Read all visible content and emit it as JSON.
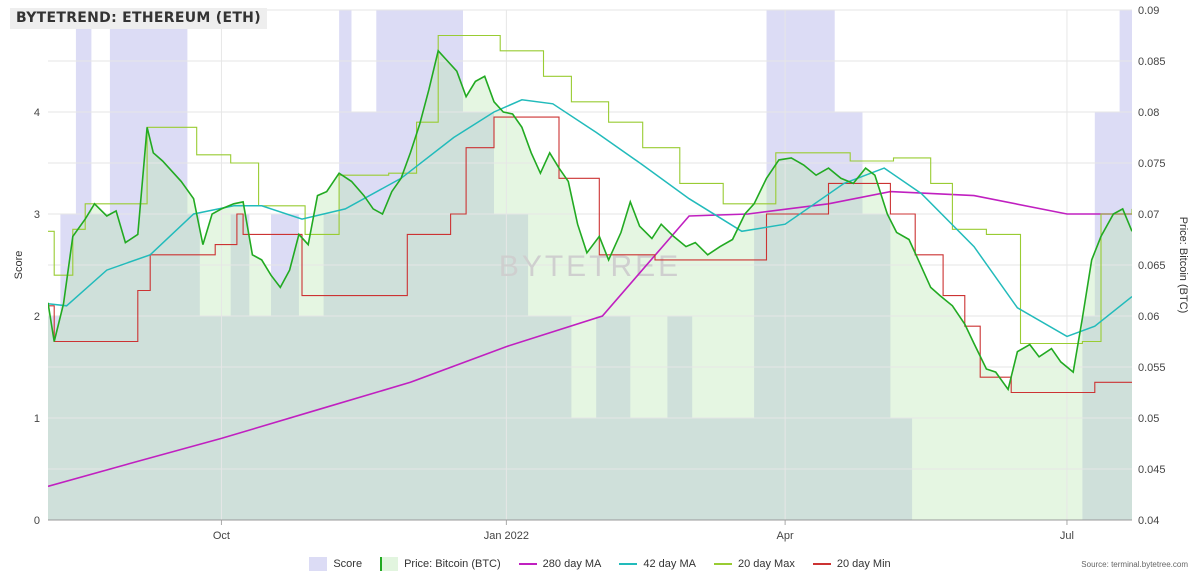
{
  "title": "BYTETREND: ETHEREUM (ETH)",
  "watermark": "BYTETREE",
  "source": "Source: terminal.bytetree.com",
  "colors": {
    "score": "#dcdcf5",
    "score_stroke": "#c8c8f0",
    "price": "#22aa22",
    "price_fill": "#e2f5df",
    "ma280": "#c020c0",
    "ma42": "#22bbbb",
    "max20": "#99cc33",
    "min20": "#cc3333",
    "overlap": "#cfe0da"
  },
  "chart_data": {
    "type": "line",
    "title": "BYTETREND: ETHEREUM (ETH)",
    "x_range": [
      "2021-08-06",
      "2022-07-22"
    ],
    "x_ticks": [
      {
        "date": "2021-10-01",
        "label": "Oct"
      },
      {
        "date": "2022-01-01",
        "label": "Jan 2022"
      },
      {
        "date": "2022-04-01",
        "label": "Apr"
      },
      {
        "date": "2022-07-01",
        "label": "Jul"
      }
    ],
    "y_left": {
      "label": "Score",
      "range": [
        0,
        5
      ],
      "ticks": [
        "0",
        "1",
        "2",
        "3",
        "4"
      ]
    },
    "y_right": {
      "label": "Price: Bitcoin (BTC)",
      "range": [
        0.04,
        0.09
      ],
      "ticks": [
        "0.04",
        "0.045",
        "0.05",
        "0.055",
        "0.06",
        "0.065",
        "0.07",
        "0.075",
        "0.08",
        "0.085",
        "0.09"
      ]
    },
    "legend": [
      {
        "name": "Score",
        "kind": "area"
      },
      {
        "name": "Price: Bitcoin (BTC)",
        "kind": "area-line"
      },
      {
        "name": "280 day MA",
        "kind": "line"
      },
      {
        "name": "42 day MA",
        "kind": "line"
      },
      {
        "name": "20 day Max",
        "kind": "line"
      },
      {
        "name": "20 day Min",
        "kind": "line"
      }
    ],
    "score": [
      [
        "2021-08-06",
        2
      ],
      [
        "2021-08-10",
        3
      ],
      [
        "2021-08-15",
        5
      ],
      [
        "2021-08-20",
        3
      ],
      [
        "2021-08-26",
        5
      ],
      [
        "2021-09-20",
        3
      ],
      [
        "2021-09-24",
        2
      ],
      [
        "2021-10-04",
        3
      ],
      [
        "2021-10-10",
        2
      ],
      [
        "2021-10-17",
        3
      ],
      [
        "2021-10-26",
        2
      ],
      [
        "2021-11-03",
        3
      ],
      [
        "2021-11-08",
        5
      ],
      [
        "2021-11-12",
        4
      ],
      [
        "2021-11-20",
        5
      ],
      [
        "2021-12-18",
        4
      ],
      [
        "2021-12-28",
        3
      ],
      [
        "2022-01-08",
        2
      ],
      [
        "2022-01-22",
        1
      ],
      [
        "2022-01-30",
        2
      ],
      [
        "2022-02-10",
        1
      ],
      [
        "2022-02-22",
        2
      ],
      [
        "2022-03-02",
        1
      ],
      [
        "2022-03-14",
        1
      ],
      [
        "2022-03-22",
        3
      ],
      [
        "2022-03-26",
        5
      ],
      [
        "2022-04-17",
        4
      ],
      [
        "2022-04-26",
        3
      ],
      [
        "2022-05-05",
        1
      ],
      [
        "2022-05-12",
        0
      ],
      [
        "2022-07-06",
        2
      ],
      [
        "2022-07-10",
        4
      ],
      [
        "2022-07-18",
        5
      ],
      [
        "2022-07-22",
        5
      ]
    ],
    "price": [
      [
        "2021-08-06",
        0.0613
      ],
      [
        "2021-08-08",
        0.0575
      ],
      [
        "2021-08-11",
        0.0612
      ],
      [
        "2021-08-14",
        0.0678
      ],
      [
        "2021-08-18",
        0.0695
      ],
      [
        "2021-08-21",
        0.071
      ],
      [
        "2021-08-25",
        0.0698
      ],
      [
        "2021-08-28",
        0.0703
      ],
      [
        "2021-08-31",
        0.0672
      ],
      [
        "2021-09-04",
        0.068
      ],
      [
        "2021-09-07",
        0.0785
      ],
      [
        "2021-09-09",
        0.076
      ],
      [
        "2021-09-12",
        0.0752
      ],
      [
        "2021-09-15",
        0.0742
      ],
      [
        "2021-09-18",
        0.0732
      ],
      [
        "2021-09-22",
        0.0715
      ],
      [
        "2021-09-25",
        0.067
      ],
      [
        "2021-09-28",
        0.07
      ],
      [
        "2021-10-01",
        0.0705
      ],
      [
        "2021-10-05",
        0.071
      ],
      [
        "2021-10-08",
        0.0712
      ],
      [
        "2021-10-11",
        0.066
      ],
      [
        "2021-10-14",
        0.0655
      ],
      [
        "2021-10-17",
        0.064
      ],
      [
        "2021-10-20",
        0.0628
      ],
      [
        "2021-10-23",
        0.0645
      ],
      [
        "2021-10-26",
        0.068
      ],
      [
        "2021-10-29",
        0.067
      ],
      [
        "2021-11-01",
        0.0718
      ],
      [
        "2021-11-04",
        0.0722
      ],
      [
        "2021-11-08",
        0.074
      ],
      [
        "2021-11-12",
        0.0732
      ],
      [
        "2021-11-16",
        0.0718
      ],
      [
        "2021-11-19",
        0.0705
      ],
      [
        "2021-11-22",
        0.07
      ],
      [
        "2021-11-25",
        0.0722
      ],
      [
        "2021-11-28",
        0.0735
      ],
      [
        "2021-12-01",
        0.076
      ],
      [
        "2021-12-04",
        0.0788
      ],
      [
        "2021-12-07",
        0.0822
      ],
      [
        "2021-12-10",
        0.086
      ],
      [
        "2021-12-13",
        0.085
      ],
      [
        "2021-12-16",
        0.084
      ],
      [
        "2021-12-19",
        0.0815
      ],
      [
        "2021-12-22",
        0.083
      ],
      [
        "2021-12-25",
        0.0835
      ],
      [
        "2021-12-28",
        0.081
      ],
      [
        "2021-12-31",
        0.08
      ],
      [
        "2022-01-03",
        0.0798
      ],
      [
        "2022-01-06",
        0.0785
      ],
      [
        "2022-01-09",
        0.076
      ],
      [
        "2022-01-12",
        0.074
      ],
      [
        "2022-01-15",
        0.076
      ],
      [
        "2022-01-18",
        0.0745
      ],
      [
        "2022-01-21",
        0.0732
      ],
      [
        "2022-01-24",
        0.069
      ],
      [
        "2022-01-27",
        0.0662
      ],
      [
        "2022-01-31",
        0.0678
      ],
      [
        "2022-02-03",
        0.0655
      ],
      [
        "2022-02-07",
        0.0682
      ],
      [
        "2022-02-10",
        0.0712
      ],
      [
        "2022-02-13",
        0.0688
      ],
      [
        "2022-02-17",
        0.0676
      ],
      [
        "2022-02-20",
        0.069
      ],
      [
        "2022-02-24",
        0.0678
      ],
      [
        "2022-02-28",
        0.0668
      ],
      [
        "2022-03-03",
        0.0672
      ],
      [
        "2022-03-07",
        0.066
      ],
      [
        "2022-03-11",
        0.0668
      ],
      [
        "2022-03-15",
        0.0675
      ],
      [
        "2022-03-19",
        0.07
      ],
      [
        "2022-03-22",
        0.071
      ],
      [
        "2022-03-26",
        0.0735
      ],
      [
        "2022-03-30",
        0.0753
      ],
      [
        "2022-04-03",
        0.0755
      ],
      [
        "2022-04-07",
        0.0748
      ],
      [
        "2022-04-11",
        0.0738
      ],
      [
        "2022-04-15",
        0.0745
      ],
      [
        "2022-04-19",
        0.0735
      ],
      [
        "2022-04-23",
        0.073
      ],
      [
        "2022-04-27",
        0.0745
      ],
      [
        "2022-04-30",
        0.0738
      ],
      [
        "2022-05-04",
        0.07
      ],
      [
        "2022-05-07",
        0.0682
      ],
      [
        "2022-05-11",
        0.0675
      ],
      [
        "2022-05-14",
        0.0655
      ],
      [
        "2022-05-18",
        0.0628
      ],
      [
        "2022-05-21",
        0.062
      ],
      [
        "2022-05-25",
        0.061
      ],
      [
        "2022-05-29",
        0.0592
      ],
      [
        "2022-06-01",
        0.0573
      ],
      [
        "2022-06-05",
        0.0548
      ],
      [
        "2022-06-08",
        0.0545
      ],
      [
        "2022-06-12",
        0.0528
      ],
      [
        "2022-06-15",
        0.0565
      ],
      [
        "2022-06-19",
        0.0572
      ],
      [
        "2022-06-22",
        0.056
      ],
      [
        "2022-06-26",
        0.0568
      ],
      [
        "2022-06-29",
        0.0555
      ],
      [
        "2022-07-03",
        0.0545
      ],
      [
        "2022-07-06",
        0.0598
      ],
      [
        "2022-07-09",
        0.0655
      ],
      [
        "2022-07-12",
        0.0678
      ],
      [
        "2022-07-16",
        0.07
      ],
      [
        "2022-07-19",
        0.0705
      ],
      [
        "2022-07-22",
        0.0683
      ]
    ],
    "ma280": [
      [
        "2021-08-06",
        0.0433
      ],
      [
        "2021-09-01",
        0.0455
      ],
      [
        "2021-10-01",
        0.048
      ],
      [
        "2021-11-01",
        0.0508
      ],
      [
        "2021-12-01",
        0.0535
      ],
      [
        "2022-01-01",
        0.057
      ],
      [
        "2022-02-01",
        0.06
      ],
      [
        "2022-03-01",
        0.0698
      ],
      [
        "2022-03-20",
        0.07
      ],
      [
        "2022-04-15",
        0.071
      ],
      [
        "2022-05-05",
        0.0722
      ],
      [
        "2022-06-01",
        0.0718
      ],
      [
        "2022-07-01",
        0.07
      ],
      [
        "2022-07-22",
        0.07
      ]
    ],
    "ma42": [
      [
        "2021-08-06",
        0.0612
      ],
      [
        "2021-08-12",
        0.061
      ],
      [
        "2021-08-25",
        0.0645
      ],
      [
        "2021-09-08",
        0.066
      ],
      [
        "2021-09-22",
        0.07
      ],
      [
        "2021-10-05",
        0.0708
      ],
      [
        "2021-10-14",
        0.0708
      ],
      [
        "2021-10-27",
        0.0695
      ],
      [
        "2021-11-10",
        0.0705
      ],
      [
        "2021-11-28",
        0.0735
      ],
      [
        "2021-12-15",
        0.0775
      ],
      [
        "2021-12-28",
        0.08
      ],
      [
        "2022-01-06",
        0.0812
      ],
      [
        "2022-01-16",
        0.0808
      ],
      [
        "2022-01-30",
        0.078
      ],
      [
        "2022-02-14",
        0.0748
      ],
      [
        "2022-03-01",
        0.0715
      ],
      [
        "2022-03-18",
        0.0683
      ],
      [
        "2022-04-01",
        0.069
      ],
      [
        "2022-04-20",
        0.073
      ],
      [
        "2022-05-03",
        0.0745
      ],
      [
        "2022-05-15",
        0.072
      ],
      [
        "2022-06-01",
        0.0668
      ],
      [
        "2022-06-15",
        0.0608
      ],
      [
        "2022-07-01",
        0.058
      ],
      [
        "2022-07-10",
        0.059
      ],
      [
        "2022-07-22",
        0.0619
      ]
    ],
    "max20": [
      [
        "2021-08-06",
        0.0683
      ],
      [
        "2021-08-08",
        0.064
      ],
      [
        "2021-08-14",
        0.0685
      ],
      [
        "2021-08-18",
        0.071
      ],
      [
        "2021-09-07",
        0.0785
      ],
      [
        "2021-09-23",
        0.0758
      ],
      [
        "2021-10-04",
        0.075
      ],
      [
        "2021-10-13",
        0.0708
      ],
      [
        "2021-10-28",
        0.068
      ],
      [
        "2021-11-08",
        0.0738
      ],
      [
        "2021-11-24",
        0.074
      ],
      [
        "2021-12-03",
        0.079
      ],
      [
        "2021-12-10",
        0.0875
      ],
      [
        "2021-12-30",
        0.086
      ],
      [
        "2022-01-13",
        0.0835
      ],
      [
        "2022-01-22",
        0.081
      ],
      [
        "2022-02-03",
        0.079
      ],
      [
        "2022-02-14",
        0.0765
      ],
      [
        "2022-02-26",
        0.073
      ],
      [
        "2022-03-12",
        0.071
      ],
      [
        "2022-03-22",
        0.071
      ],
      [
        "2022-03-29",
        0.076
      ],
      [
        "2022-04-22",
        0.0752
      ],
      [
        "2022-05-06",
        0.0755
      ],
      [
        "2022-05-18",
        0.073
      ],
      [
        "2022-05-25",
        0.0685
      ],
      [
        "2022-06-05",
        0.068
      ],
      [
        "2022-06-16",
        0.0573
      ],
      [
        "2022-07-06",
        0.0575
      ],
      [
        "2022-07-12",
        0.07
      ],
      [
        "2022-07-22",
        0.0705
      ]
    ],
    "min20": [
      [
        "2021-08-06",
        0.061
      ],
      [
        "2021-08-08",
        0.0575
      ],
      [
        "2021-09-01",
        0.0575
      ],
      [
        "2021-09-04",
        0.0625
      ],
      [
        "2021-09-08",
        0.066
      ],
      [
        "2021-09-29",
        0.067
      ],
      [
        "2021-10-06",
        0.07
      ],
      [
        "2021-10-08",
        0.068
      ],
      [
        "2021-10-22",
        0.068
      ],
      [
        "2021-10-27",
        0.062
      ],
      [
        "2021-11-27",
        0.062
      ],
      [
        "2021-11-30",
        0.068
      ],
      [
        "2021-12-14",
        0.07
      ],
      [
        "2021-12-19",
        0.0765
      ],
      [
        "2021-12-28",
        0.0795
      ],
      [
        "2022-01-10",
        0.0795
      ],
      [
        "2022-01-18",
        0.0735
      ],
      [
        "2022-01-26",
        0.0735
      ],
      [
        "2022-01-31",
        0.066
      ],
      [
        "2022-02-18",
        0.0655
      ],
      [
        "2022-03-07",
        0.0655
      ],
      [
        "2022-03-16",
        0.0655
      ],
      [
        "2022-03-26",
        0.07
      ],
      [
        "2022-04-15",
        0.073
      ],
      [
        "2022-05-01",
        0.073
      ],
      [
        "2022-05-05",
        0.07
      ],
      [
        "2022-05-13",
        0.066
      ],
      [
        "2022-05-22",
        0.062
      ],
      [
        "2022-05-29",
        0.059
      ],
      [
        "2022-06-03",
        0.054
      ],
      [
        "2022-06-13",
        0.0525
      ],
      [
        "2022-07-03",
        0.0525
      ],
      [
        "2022-07-10",
        0.0535
      ],
      [
        "2022-07-22",
        0.0535
      ]
    ]
  }
}
